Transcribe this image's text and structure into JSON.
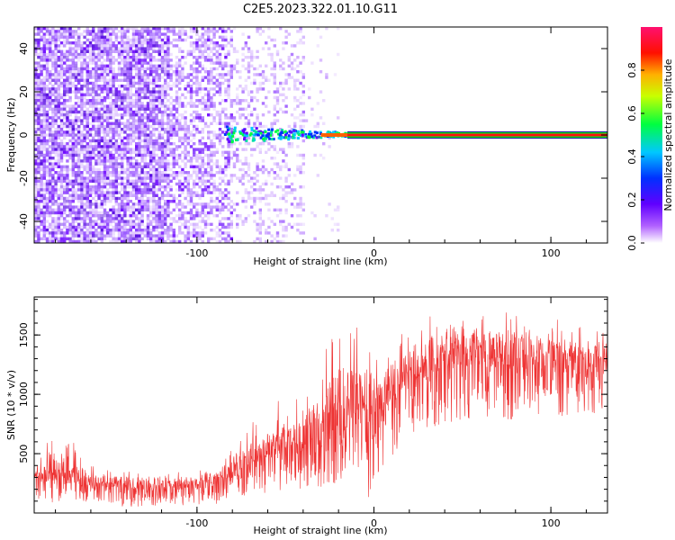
{
  "title": "C2E5.2023.322.01.10.G11",
  "chart_data": [
    {
      "type": "heatmap",
      "xlabel": "Height of straight line (km)",
      "ylabel": "Frequency (Hz)",
      "xlim": [
        -192,
        132
      ],
      "ylim": [
        -50,
        50
      ],
      "x_ticks": [
        -100,
        0,
        100
      ],
      "y_ticks": [
        40,
        20,
        0,
        -20,
        -40
      ],
      "colorbar": {
        "label": "Normalized spectral amplitude",
        "range": [
          0.0,
          1.0
        ],
        "ticks": [
          "0.0",
          "0.2",
          "0.4",
          "0.6",
          "0.8"
        ],
        "colors": [
          "#ffffff",
          "#7a00ff",
          "#0000ff",
          "#00e5ff",
          "#00ff00",
          "#ffff00",
          "#ff0000",
          "#ff1493"
        ]
      },
      "features": {
        "noise_region_x": [
          -192,
          -40
        ],
        "narrowband_line_frequency_hz": 0,
        "narrowband_line_x": [
          -15,
          132
        ]
      }
    },
    {
      "type": "line",
      "xlabel": "Height of straight line (km)",
      "ylabel": "SNR (10 * v/v)",
      "xlim": [
        -192,
        132
      ],
      "ylim": [
        0,
        1820
      ],
      "x_ticks": [
        -100,
        0,
        100
      ],
      "y_ticks": [
        500,
        1000,
        1500
      ],
      "color": "#ee3333",
      "envelope": [
        {
          "x": -192,
          "low": 80,
          "mean": 250,
          "high": 480
        },
        {
          "x": -180,
          "low": 90,
          "mean": 270,
          "high": 700
        },
        {
          "x": -170,
          "low": 70,
          "mean": 240,
          "high": 600
        },
        {
          "x": -160,
          "low": 60,
          "mean": 210,
          "high": 400
        },
        {
          "x": -140,
          "low": 50,
          "mean": 190,
          "high": 350
        },
        {
          "x": -120,
          "low": 50,
          "mean": 190,
          "high": 330
        },
        {
          "x": -100,
          "low": 60,
          "mean": 200,
          "high": 360
        },
        {
          "x": -90,
          "low": 70,
          "mean": 230,
          "high": 420
        },
        {
          "x": -80,
          "low": 100,
          "mean": 290,
          "high": 560
        },
        {
          "x": -70,
          "low": 130,
          "mean": 360,
          "high": 750
        },
        {
          "x": -60,
          "low": 160,
          "mean": 420,
          "high": 900
        },
        {
          "x": -50,
          "low": 180,
          "mean": 470,
          "high": 1100
        },
        {
          "x": -40,
          "low": 200,
          "mean": 520,
          "high": 1250
        },
        {
          "x": -30,
          "low": 220,
          "mean": 580,
          "high": 1400
        },
        {
          "x": -20,
          "low": 250,
          "mean": 650,
          "high": 1550
        },
        {
          "x": -10,
          "low": 300,
          "mean": 740,
          "high": 1700
        },
        {
          "x": -3,
          "low": 120,
          "mean": 760,
          "high": 1810
        },
        {
          "x": 0,
          "low": 300,
          "mean": 780,
          "high": 1300
        },
        {
          "x": 10,
          "low": 450,
          "mean": 900,
          "high": 1400
        },
        {
          "x": 20,
          "low": 650,
          "mean": 1080,
          "high": 1650
        },
        {
          "x": 40,
          "low": 750,
          "mean": 1200,
          "high": 1750
        },
        {
          "x": 55,
          "low": 800,
          "mean": 1230,
          "high": 1800
        },
        {
          "x": 70,
          "low": 780,
          "mean": 1220,
          "high": 1750
        },
        {
          "x": 90,
          "low": 800,
          "mean": 1180,
          "high": 1650
        },
        {
          "x": 110,
          "low": 820,
          "mean": 1170,
          "high": 1620
        },
        {
          "x": 132,
          "low": 850,
          "mean": 1180,
          "high": 1600
        }
      ]
    }
  ]
}
